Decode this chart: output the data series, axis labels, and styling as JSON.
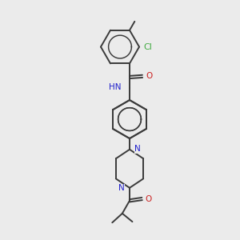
{
  "bg_color": "#ebebeb",
  "bond_color": "#3a3a3a",
  "N_color": "#2020cc",
  "O_color": "#cc2020",
  "Cl_color": "#40aa40",
  "font_size_atom": 7.5,
  "line_width": 1.4,
  "fig_w": 3.0,
  "fig_h": 3.0,
  "dpi": 100,
  "xlim": [
    0,
    10
  ],
  "ylim": [
    0,
    13
  ]
}
